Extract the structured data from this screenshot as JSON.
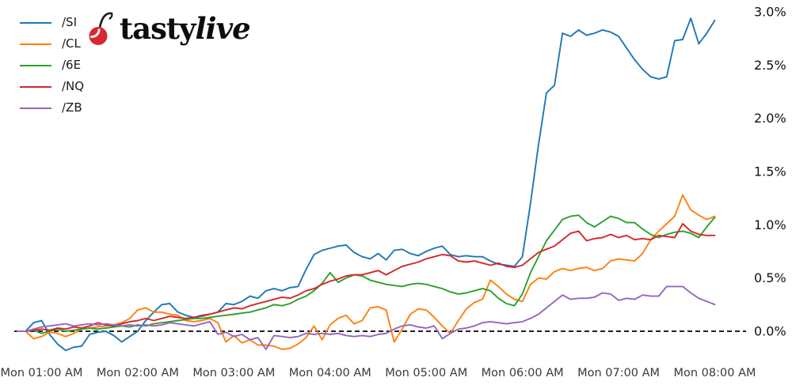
{
  "logo": {
    "tasty": "tasty",
    "live": "live",
    "cherry_color": "#d7282f",
    "stem_color": "#1a1a1a"
  },
  "chart_data": {
    "type": "line",
    "title": "",
    "xlabel": "",
    "ylabel": "",
    "background": "#ffffff",
    "grid": false,
    "legend_position": "upper left",
    "zero_line": {
      "style": "dashed",
      "color": "#000000",
      "value": 0
    },
    "x_axis": {
      "unit": "hours",
      "start_hour": 0.75,
      "interval_hours": 0.0833333,
      "ticks": [
        {
          "hour": 1,
          "label": "Mon 01:00 AM"
        },
        {
          "hour": 2,
          "label": "Mon 02:00 AM"
        },
        {
          "hour": 3,
          "label": "Mon 03:00 AM"
        },
        {
          "hour": 4,
          "label": "Mon 04:00 AM"
        },
        {
          "hour": 5,
          "label": "Mon 05:00 AM"
        },
        {
          "hour": 6,
          "label": "Mon 06:00 AM"
        },
        {
          "hour": 7,
          "label": "Mon 07:00 AM"
        },
        {
          "hour": 8,
          "label": "Mon 08:00 AM"
        }
      ]
    },
    "y_axis": {
      "unit": "percent",
      "min": -0.35,
      "max": 3.05,
      "ticks": [
        {
          "value": 0.0,
          "label": "0.0%"
        },
        {
          "value": 0.5,
          "label": "0.5%"
        },
        {
          "value": 1.0,
          "label": "1.0%"
        },
        {
          "value": 1.5,
          "label": "1.5%"
        },
        {
          "value": 2.0,
          "label": "2.0%"
        },
        {
          "value": 2.5,
          "label": "2.5%"
        },
        {
          "value": 3.0,
          "label": "3.0%"
        }
      ]
    },
    "series": [
      {
        "name": "/SI",
        "color": "#1f77b4",
        "values": [
          0.0,
          0.0,
          0.08,
          0.1,
          -0.03,
          -0.12,
          -0.18,
          -0.15,
          -0.14,
          -0.03,
          -0.01,
          0.0,
          -0.04,
          -0.1,
          -0.05,
          0.0,
          0.1,
          0.18,
          0.25,
          0.26,
          0.18,
          0.15,
          0.13,
          0.14,
          0.16,
          0.18,
          0.26,
          0.25,
          0.28,
          0.33,
          0.31,
          0.38,
          0.4,
          0.38,
          0.41,
          0.42,
          0.58,
          0.72,
          0.76,
          0.78,
          0.8,
          0.81,
          0.74,
          0.7,
          0.68,
          0.73,
          0.67,
          0.76,
          0.77,
          0.73,
          0.71,
          0.75,
          0.78,
          0.8,
          0.72,
          0.7,
          0.71,
          0.7,
          0.7,
          0.66,
          0.63,
          0.62,
          0.61,
          0.7,
          1.2,
          1.75,
          2.24,
          2.31,
          2.8,
          2.77,
          2.83,
          2.78,
          2.8,
          2.83,
          2.81,
          2.77,
          2.66,
          2.55,
          2.46,
          2.39,
          2.37,
          2.39,
          2.73,
          2.74,
          2.94,
          2.7,
          2.8,
          2.92
        ]
      },
      {
        "name": "/CL",
        "color": "#ff7f0e",
        "values": [
          0.0,
          0.0,
          -0.07,
          -0.05,
          -0.01,
          -0.02,
          -0.05,
          -0.02,
          0.02,
          0.03,
          0.04,
          0.05,
          0.06,
          0.08,
          0.12,
          0.2,
          0.22,
          0.18,
          0.18,
          0.16,
          0.15,
          0.1,
          0.09,
          0.1,
          0.12,
          0.08,
          -0.1,
          -0.04,
          -0.11,
          -0.08,
          -0.13,
          -0.13,
          -0.14,
          -0.17,
          -0.16,
          -0.12,
          -0.06,
          0.05,
          -0.08,
          0.06,
          0.12,
          0.15,
          0.07,
          0.1,
          0.22,
          0.23,
          0.2,
          -0.1,
          0.02,
          0.16,
          0.21,
          0.2,
          0.13,
          0.05,
          -0.02,
          0.1,
          0.21,
          0.27,
          0.3,
          0.48,
          0.42,
          0.35,
          0.3,
          0.28,
          0.44,
          0.5,
          0.49,
          0.56,
          0.59,
          0.57,
          0.59,
          0.6,
          0.57,
          0.59,
          0.66,
          0.68,
          0.67,
          0.66,
          0.73,
          0.86,
          0.94,
          1.01,
          1.08,
          1.28,
          1.14,
          1.09,
          1.05,
          1.08
        ]
      },
      {
        "name": "/6E",
        "color": "#2ca02c",
        "values": [
          0.0,
          0.0,
          0.01,
          -0.02,
          0.0,
          0.02,
          0.0,
          0.01,
          0.02,
          0.03,
          0.02,
          0.03,
          0.04,
          0.05,
          0.04,
          0.06,
          0.05,
          0.07,
          0.08,
          0.09,
          0.1,
          0.11,
          0.12,
          0.12,
          0.13,
          0.14,
          0.15,
          0.16,
          0.17,
          0.18,
          0.2,
          0.22,
          0.25,
          0.24,
          0.26,
          0.3,
          0.33,
          0.38,
          0.45,
          0.55,
          0.46,
          0.5,
          0.53,
          0.52,
          0.48,
          0.46,
          0.44,
          0.43,
          0.42,
          0.44,
          0.45,
          0.44,
          0.42,
          0.4,
          0.37,
          0.35,
          0.36,
          0.38,
          0.4,
          0.38,
          0.31,
          0.26,
          0.24,
          0.35,
          0.55,
          0.7,
          0.85,
          0.95,
          1.05,
          1.08,
          1.09,
          1.02,
          0.98,
          1.03,
          1.08,
          1.06,
          1.02,
          1.02,
          0.96,
          0.91,
          0.88,
          0.91,
          0.93,
          0.94,
          0.92,
          0.88,
          0.98,
          1.07
        ]
      },
      {
        "name": "/NQ",
        "color": "#d62728",
        "values": [
          0.0,
          0.0,
          0.01,
          0.02,
          0.01,
          0.03,
          0.02,
          0.04,
          0.03,
          0.05,
          0.08,
          0.06,
          0.05,
          0.07,
          0.09,
          0.1,
          0.12,
          0.1,
          0.12,
          0.14,
          0.13,
          0.12,
          0.13,
          0.15,
          0.16,
          0.18,
          0.2,
          0.22,
          0.21,
          0.24,
          0.26,
          0.28,
          0.3,
          0.32,
          0.31,
          0.34,
          0.38,
          0.4,
          0.44,
          0.47,
          0.49,
          0.52,
          0.53,
          0.53,
          0.55,
          0.57,
          0.53,
          0.57,
          0.61,
          0.63,
          0.65,
          0.68,
          0.7,
          0.72,
          0.71,
          0.66,
          0.65,
          0.66,
          0.64,
          0.62,
          0.64,
          0.61,
          0.6,
          0.62,
          0.68,
          0.74,
          0.77,
          0.8,
          0.86,
          0.92,
          0.94,
          0.85,
          0.87,
          0.88,
          0.91,
          0.88,
          0.9,
          0.86,
          0.87,
          0.86,
          0.9,
          0.89,
          0.88,
          1.01,
          0.94,
          0.91,
          0.9,
          0.9
        ]
      },
      {
        "name": "/ZB",
        "color": "#9467bd",
        "values": [
          0.0,
          0.0,
          0.02,
          0.04,
          0.05,
          0.06,
          0.07,
          0.05,
          0.06,
          0.07,
          0.06,
          0.07,
          0.06,
          0.05,
          0.06,
          0.05,
          0.06,
          0.05,
          0.06,
          0.08,
          0.07,
          0.06,
          0.05,
          0.07,
          0.09,
          -0.03,
          -0.01,
          -0.05,
          -0.03,
          -0.08,
          -0.06,
          -0.17,
          -0.04,
          -0.05,
          -0.06,
          -0.05,
          -0.02,
          -0.03,
          -0.02,
          -0.03,
          -0.02,
          -0.04,
          -0.05,
          -0.04,
          -0.05,
          -0.03,
          -0.02,
          0.02,
          0.05,
          0.06,
          0.04,
          0.03,
          0.05,
          -0.07,
          -0.02,
          0.02,
          0.03,
          0.05,
          0.08,
          0.09,
          0.08,
          0.07,
          0.08,
          0.09,
          0.12,
          0.16,
          0.22,
          0.28,
          0.34,
          0.3,
          0.31,
          0.31,
          0.32,
          0.36,
          0.35,
          0.29,
          0.31,
          0.3,
          0.34,
          0.33,
          0.33,
          0.42,
          0.42,
          0.42,
          0.36,
          0.31,
          0.28,
          0.25
        ]
      }
    ]
  }
}
